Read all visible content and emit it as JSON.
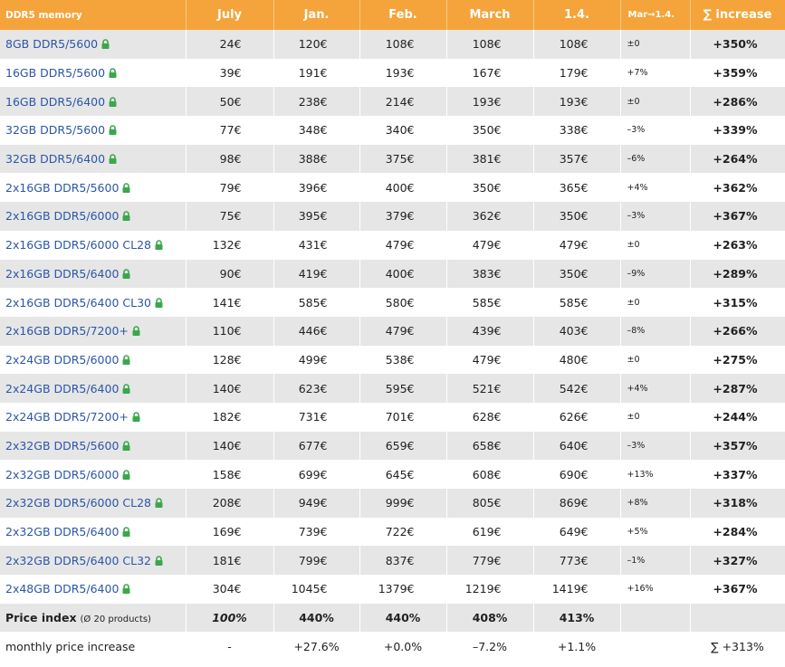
{
  "header": [
    "DDR5 memory",
    "July",
    "Jan.",
    "Feb.",
    "March",
    "1.4.",
    "Mar→1.4.",
    "∑ increase"
  ],
  "rows": [
    {
      "name": "8GB DDR5/5600",
      "cells": [
        "24€",
        "120€",
        "108€",
        "108€",
        "108€",
        "±0",
        "+350%"
      ]
    },
    {
      "name": "16GB DDR5/5600",
      "cells": [
        "39€",
        "191€",
        "193€",
        "167€",
        "179€",
        "+7%",
        "+359%"
      ]
    },
    {
      "name": "16GB DDR5/6400",
      "cells": [
        "50€",
        "238€",
        "214€",
        "193€",
        "193€",
        "±0",
        "+286%"
      ]
    },
    {
      "name": "32GB DDR5/5600",
      "cells": [
        "77€",
        "348€",
        "340€",
        "350€",
        "338€",
        "–3%",
        "+339%"
      ]
    },
    {
      "name": "32GB DDR5/6400",
      "cells": [
        "98€",
        "388€",
        "375€",
        "381€",
        "357€",
        "–6%",
        "+264%"
      ]
    },
    {
      "name": "2x16GB DDR5/5600",
      "cells": [
        "79€",
        "396€",
        "400€",
        "350€",
        "365€",
        "+4%",
        "+362%"
      ]
    },
    {
      "name": "2x16GB DDR5/6000",
      "cells": [
        "75€",
        "395€",
        "379€",
        "362€",
        "350€",
        "–3%",
        "+367%"
      ]
    },
    {
      "name": "2x16GB DDR5/6000 CL28",
      "cells": [
        "132€",
        "431€",
        "479€",
        "479€",
        "479€",
        "±0",
        "+263%"
      ]
    },
    {
      "name": "2x16GB DDR5/6400",
      "cells": [
        "90€",
        "419€",
        "400€",
        "383€",
        "350€",
        "–9%",
        "+289%"
      ]
    },
    {
      "name": "2x16GB DDR5/6400 CL30",
      "cells": [
        "141€",
        "585€",
        "580€",
        "585€",
        "585€",
        "±0",
        "+315%"
      ]
    },
    {
      "name": "2x16GB DDR5/7200+",
      "cells": [
        "110€",
        "446€",
        "479€",
        "439€",
        "403€",
        "–8%",
        "+266%"
      ]
    },
    {
      "name": "2x24GB DDR5/6000",
      "cells": [
        "128€",
        "499€",
        "538€",
        "479€",
        "480€",
        "±0",
        "+275%"
      ]
    },
    {
      "name": "2x24GB DDR5/6400",
      "cells": [
        "140€",
        "623€",
        "595€",
        "521€",
        "542€",
        "+4%",
        "+287%"
      ]
    },
    {
      "name": "2x24GB DDR5/7200+",
      "cells": [
        "182€",
        "731€",
        "701€",
        "628€",
        "626€",
        "±0",
        "+244%"
      ]
    },
    {
      "name": "2x32GB DDR5/5600",
      "cells": [
        "140€",
        "677€",
        "659€",
        "658€",
        "640€",
        "–3%",
        "+357%"
      ]
    },
    {
      "name": "2x32GB DDR5/6000",
      "cells": [
        "158€",
        "699€",
        "645€",
        "608€",
        "690€",
        "+13%",
        "+337%"
      ]
    },
    {
      "name": "2x32GB DDR5/6000 CL28",
      "cells": [
        "208€",
        "949€",
        "999€",
        "805€",
        "869€",
        "+8%",
        "+318%"
      ]
    },
    {
      "name": "2x32GB DDR5/6400",
      "cells": [
        "169€",
        "739€",
        "722€",
        "619€",
        "649€",
        "+5%",
        "+284%"
      ]
    },
    {
      "name": "2x32GB DDR5/6400 CL32",
      "cells": [
        "181€",
        "799€",
        "837€",
        "779€",
        "773€",
        "–1%",
        "+327%"
      ]
    },
    {
      "name": "2x48GB DDR5/6400",
      "cells": [
        "304€",
        "1045€",
        "1379€",
        "1219€",
        "1419€",
        "+16%",
        "+367%"
      ]
    }
  ],
  "price_index": {
    "label": "Price index",
    "note": "(Ø 20 products)",
    "values": [
      "100%",
      "440%",
      "440%",
      "408%",
      "413%"
    ]
  },
  "monthly": {
    "label": "monthly price increase",
    "values": [
      "-",
      "+27.6%",
      "+0.0%",
      "–7.2%",
      "+1.1%"
    ],
    "total": "∑ +313%"
  }
}
